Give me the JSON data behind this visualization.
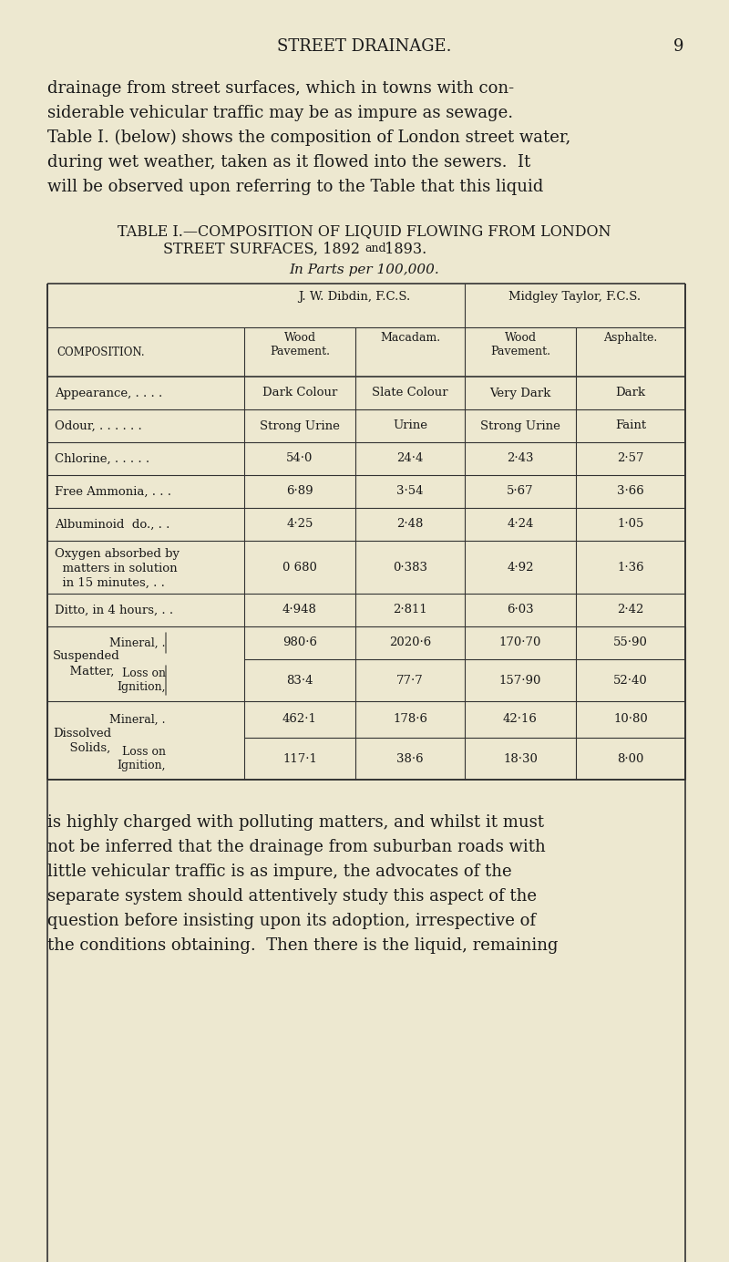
{
  "bg_color": "#ede8d0",
  "text_color": "#1a1a1a",
  "page_title": "STREET DRAINAGE.",
  "page_num": "9",
  "intro_lines": [
    "drainage from street surfaces, which in towns with con-",
    "siderable vehicular traffic may be as impure as sewage.",
    "Table I. (below) shows the composition of London street water,",
    "during wet weather, taken as it flowed into the sewers.  It",
    "will be observed upon referring to the Table that this liquid"
  ],
  "table_title_line1": "TABLE I.—COMPOSITION OF LIQUID FLOWING FROM LONDON",
  "table_title_line2a": "STREET SURFACES, 1892 ",
  "table_title_line2b": "and",
  "table_title_line2c": " 1893.",
  "table_subtitle": "In Parts per 100,000.",
  "dibdin_header": "J. W. Dibdin, F.C.S.",
  "midgley_header": "Midgley Taylor, F.C.S.",
  "col_sub_headers": [
    "Wood\nPavement.",
    "Macadam.",
    "Wood\nPavement.",
    "Asphalte."
  ],
  "composition_label": "COMPOSITION.",
  "simple_rows": [
    {
      "label": "Appearance, . . . .",
      "vals": [
        "Dark Colour",
        "Slate Colour",
        "Very Dark",
        "Dark"
      ]
    },
    {
      "label": "Odour, . . . . . .",
      "vals": [
        "Strong Urine",
        "Urine",
        "Strong Urine",
        "Faint"
      ]
    },
    {
      "label": "Chlorine, . . . . .",
      "vals": [
        "54·0",
        "24·4",
        "2·43",
        "2·57"
      ]
    },
    {
      "label": "Free Ammonia, . . .",
      "vals": [
        "6·89",
        "3·54",
        "5·67",
        "3·66"
      ]
    },
    {
      "label": "Albuminoid  do., . .",
      "vals": [
        "4·25",
        "2·48",
        "4·24",
        "1·05"
      ]
    },
    {
      "label": "Ditto, in 4 hours, . .",
      "vals": [
        "4·948",
        "2·811",
        "6·03",
        "2·42"
      ]
    }
  ],
  "oxygen_row": {
    "label_lines": [
      "Oxygen absorbed by",
      "  matters in solution",
      "  in 15 minutes, . ."
    ],
    "vals": [
      "0 680",
      "0·383",
      "4·92",
      "1·36"
    ]
  },
  "suspended_row": {
    "outer_label": [
      "Suspended",
      "  Matter,"
    ],
    "mineral_label": "Mineral, .",
    "loss_label": [
      "Loss on",
      "Ignition,"
    ],
    "mineral_vals": [
      "980·6",
      "2020·6",
      "170·70",
      "55·90"
    ],
    "loss_vals": [
      "83·4",
      "77·7",
      "157·90",
      "52·40"
    ]
  },
  "dissolved_row": {
    "outer_label": [
      "Dissolved",
      "  Solids,"
    ],
    "mineral_label": "Mineral, .",
    "loss_label": [
      "Loss on",
      "Ignition,"
    ],
    "mineral_vals": [
      "462·1",
      "178·6",
      "42·16",
      "10·80"
    ],
    "loss_vals": [
      "117·1",
      "38·6",
      "18·30",
      "8·00"
    ]
  },
  "outro_lines": [
    "is highly charged with polluting matters, and whilst it must",
    "not be inferred that the drainage from suburban roads with",
    "little vehicular traffic is as impure, the advocates of the",
    "separate system should attentively study this aspect of the",
    "question before insisting upon its adoption, irrespective of",
    "the conditions obtaining.  Then there is the liquid, remaining"
  ]
}
